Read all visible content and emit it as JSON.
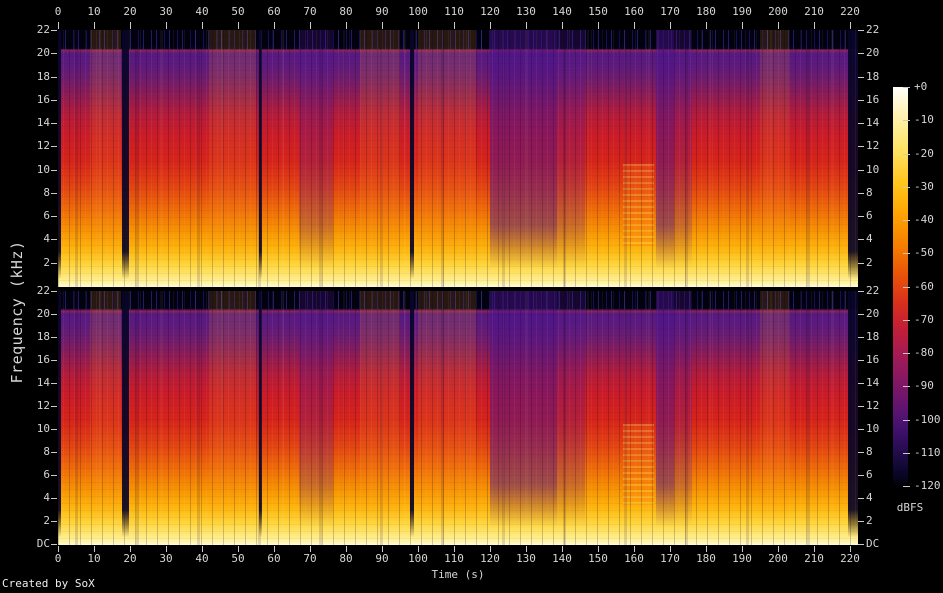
{
  "credit": "Created by SoX",
  "chart_data": {
    "type": "heatmap",
    "subtype": "stereo-audio-spectrogram",
    "generated_by": "SoX",
    "channels": 2,
    "xlabel": "Time (s)",
    "ylabel": "Frequency (kHz)",
    "colorbar_label": "dBFS",
    "x_range_s": [
      0,
      220
    ],
    "x_tick_step_s": 10,
    "x_ticks": [
      "0",
      "10",
      "20",
      "30",
      "40",
      "50",
      "60",
      "70",
      "80",
      "90",
      "100",
      "110",
      "120",
      "130",
      "140",
      "150",
      "160",
      "170",
      "180",
      "190",
      "200",
      "210",
      "220"
    ],
    "y_range_khz": [
      0,
      22
    ],
    "y_ticks_upper_panel": [
      "22",
      "20",
      "18",
      "16",
      "14",
      "12",
      "10",
      "8",
      "6",
      "4",
      "2"
    ],
    "y_ticks_lower_panel": [
      "22",
      "20",
      "18",
      "16",
      "14",
      "12",
      "10",
      "8",
      "6",
      "4",
      "2",
      "DC"
    ],
    "colorbar_range_dbfs": [
      0,
      -120
    ],
    "colorbar_ticks": [
      "+0",
      "-10",
      "-20",
      "-30",
      "-40",
      "-50",
      "-60",
      "-70",
      "-80",
      "-90",
      "-100",
      "-110",
      "-120"
    ],
    "approx_level_by_freq_dbfs": {
      "DC-2kHz": "-10 to -25",
      "2-6kHz": "-25 to -45",
      "6-12kHz": "-45 to -55",
      "12-19kHz": "-55 to -80",
      "19-20.5kHz": "-70 to -90",
      "20.5-22kHz": "-95 to -120"
    },
    "palette_stops": [
      {
        "pos": 0,
        "color": "#ffffff"
      },
      {
        "pos": 3,
        "color": "#fff9da"
      },
      {
        "pos": 9,
        "color": "#ffefa0"
      },
      {
        "pos": 16,
        "color": "#ffe161"
      },
      {
        "pos": 24,
        "color": "#ffc61c"
      },
      {
        "pos": 32,
        "color": "#fda302"
      },
      {
        "pos": 40,
        "color": "#f57d00"
      },
      {
        "pos": 47,
        "color": "#ea5308"
      },
      {
        "pos": 54,
        "color": "#da301c"
      },
      {
        "pos": 60,
        "color": "#c41f34"
      },
      {
        "pos": 66,
        "color": "#a91b50"
      },
      {
        "pos": 72,
        "color": "#8c1960"
      },
      {
        "pos": 78,
        "color": "#6d156c"
      },
      {
        "pos": 84,
        "color": "#4b1272"
      },
      {
        "pos": 89,
        "color": "#2f0e5c"
      },
      {
        "pos": 94,
        "color": "#170a3c"
      },
      {
        "pos": 98,
        "color": "#070420"
      },
      {
        "pos": 100,
        "color": "#000000"
      }
    ],
    "freq_profile_stops": [
      {
        "pos": 0,
        "color": "#0a0522"
      },
      {
        "pos": 5.5,
        "color": "#0b0626"
      },
      {
        "pos": 7,
        "color": "#1a0c3e"
      },
      {
        "pos": 8,
        "color": "#8c2258"
      },
      {
        "pos": 9,
        "color": "#571a80"
      },
      {
        "pos": 13,
        "color": "#5c1a7e"
      },
      {
        "pos": 19,
        "color": "#6f1c6e"
      },
      {
        "pos": 26,
        "color": "#901c52"
      },
      {
        "pos": 33,
        "color": "#b41c3a"
      },
      {
        "pos": 41,
        "color": "#cb1c28"
      },
      {
        "pos": 51,
        "color": "#d6241a"
      },
      {
        "pos": 61,
        "color": "#e34412"
      },
      {
        "pos": 70,
        "color": "#ef6c08"
      },
      {
        "pos": 78,
        "color": "#f79202"
      },
      {
        "pos": 85,
        "color": "#feb40c"
      },
      {
        "pos": 91,
        "color": "#ffd438"
      },
      {
        "pos": 95.5,
        "color": "#ffe672"
      },
      {
        "pos": 98.5,
        "color": "#fff3a6"
      },
      {
        "pos": 100,
        "color": "#fffbd8"
      }
    ],
    "tones": {
      "dark": "rgba(8,5,40,0.92)",
      "dim": "rgba(74,18,140,0.50)",
      "dim_light": "rgba(82,22,146,0.26)",
      "warm": "rgba(255,152,32,0.15)",
      "hot": "rgba(255,118,12,0.28)"
    },
    "time_sections": [
      {
        "start": 0,
        "end": 0.8,
        "tone": "dark"
      },
      {
        "start": 9,
        "end": 17.5,
        "tone": "warm"
      },
      {
        "start": 17.8,
        "end": 19.6,
        "tone": "dark"
      },
      {
        "start": 42,
        "end": 55,
        "tone": "warm"
      },
      {
        "start": 55.8,
        "end": 56.7,
        "tone": "dark"
      },
      {
        "start": 67,
        "end": 76.5,
        "tone": "dim_light"
      },
      {
        "start": 84,
        "end": 95,
        "tone": "warm"
      },
      {
        "start": 97.8,
        "end": 99,
        "tone": "dark"
      },
      {
        "start": 100,
        "end": 116,
        "tone": "warm"
      },
      {
        "start": 120,
        "end": 138.5,
        "tone": "dim"
      },
      {
        "start": 138.5,
        "end": 146.5,
        "tone": "dim_light"
      },
      {
        "start": 157,
        "end": 165.5,
        "tone": "hot",
        "f_high_khz": 10.5,
        "f_low_khz": 3.5
      },
      {
        "start": 166,
        "end": 171,
        "tone": "dim"
      },
      {
        "start": 171,
        "end": 176,
        "tone": "dim_light"
      },
      {
        "start": 195,
        "end": 203,
        "tone": "warm"
      },
      {
        "start": 219.5,
        "end": 222.3,
        "tone": "dark"
      }
    ]
  }
}
